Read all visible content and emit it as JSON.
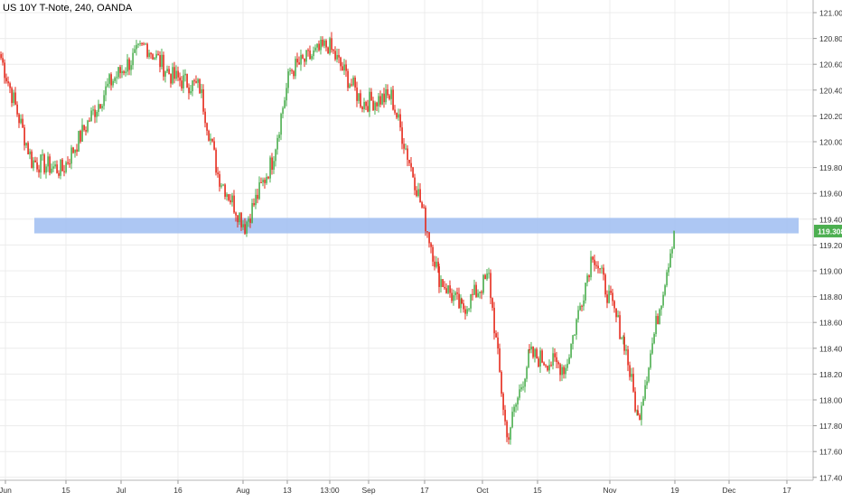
{
  "header": {
    "symbol_title": "US 10Y T-Note, 240, OANDA"
  },
  "colors": {
    "up_candle": "#4caf50",
    "down_candle": "#e5291b",
    "resistance_zone": "#a9c4f2",
    "last_price_badge": "#4caf50",
    "grid": "#ececec",
    "axis_text": "#333333"
  },
  "chart_data": {
    "type": "line",
    "title": "US 10Y T-Note, 240, OANDA",
    "xlabel": "",
    "ylabel": "",
    "ylim": [
      117.35,
      121.15
    ],
    "grid": true,
    "y_ticks": [
      "121.000",
      "120.800",
      "120.600",
      "120.400",
      "120.200",
      "120.000",
      "119.800",
      "119.600",
      "119.400",
      "119.200",
      "119.000",
      "118.800",
      "118.600",
      "118.400",
      "118.200",
      "118.000",
      "117.800",
      "117.600",
      "117.400"
    ],
    "x_ticks": [
      "Jun",
      "15",
      "Jul",
      "16",
      "Aug",
      "13",
      "13:00",
      "Sep",
      "17",
      "Oct",
      "15",
      "Nov",
      "19",
      "Dec",
      "17"
    ],
    "last_price": "119.308",
    "resistance_zone": {
      "low": 119.29,
      "high": 119.41
    },
    "series": [
      {
        "x": [
          "Jun 1",
          "Jun 8",
          "Jun 15",
          "Jun 22",
          "Jun 29",
          "Jul 6",
          "Jul 13",
          "Jul 20",
          "Jul 27",
          "Aug 3",
          "Aug 10",
          "Aug 17",
          "Aug 24",
          "Aug 31",
          "Sep 7",
          "Sep 14",
          "Sep 21",
          "Sep 28",
          "Oct 5",
          "Oct 12",
          "Oct 19",
          "Oct 26",
          "Nov 2",
          "Nov 9",
          "Nov 16",
          "Nov 19"
        ],
        "values": [
          120.65,
          119.85,
          119.78,
          120.2,
          120.45,
          120.75,
          120.5,
          120.42,
          119.75,
          119.35,
          119.85,
          120.55,
          120.75,
          120.3,
          120.35,
          119.65,
          118.95,
          118.7,
          118.95,
          117.7,
          118.35,
          118.25,
          119.15,
          118.45,
          117.85,
          119.308
        ]
      }
    ]
  }
}
